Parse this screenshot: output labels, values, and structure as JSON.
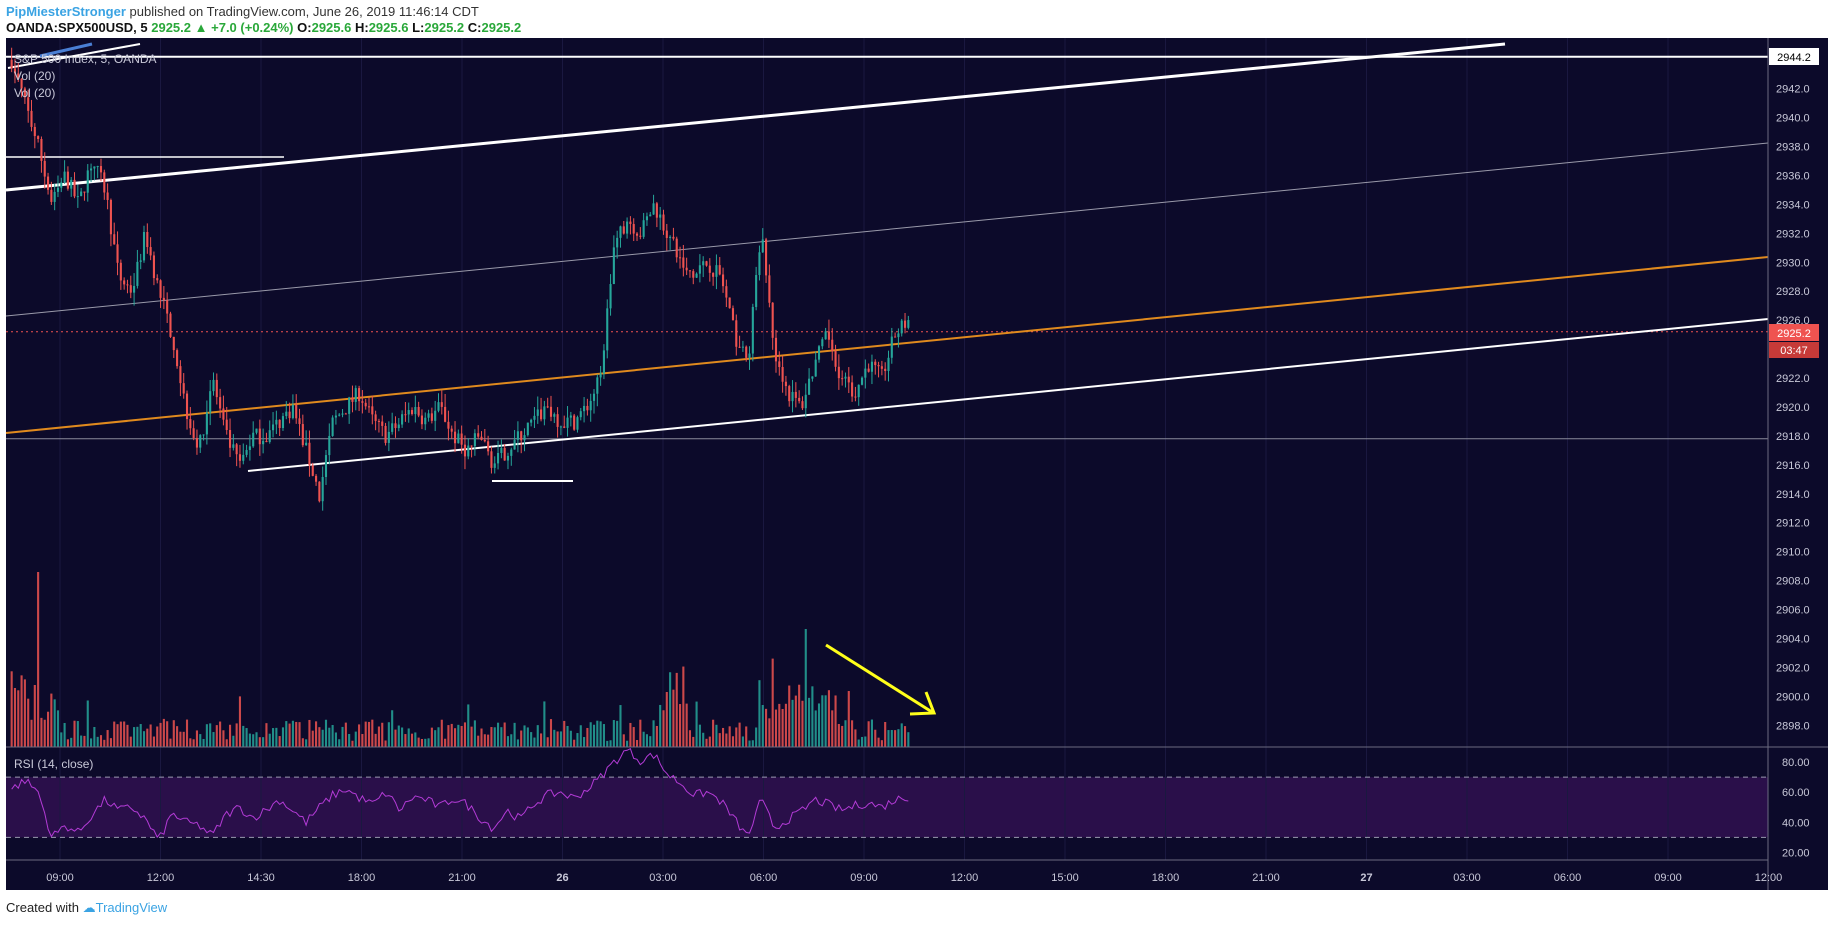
{
  "header": {
    "author": "PipMiesterStronger",
    "published": "published on TradingView.com, June 26, 2019 11:46:14 CDT",
    "symbol": "OANDA:SPX500USD, 5",
    "last": "2925.2",
    "change": "+7.0 (+0.24%)",
    "o_label": "O:",
    "o": "2925.6",
    "h_label": "H:",
    "h": "2925.6",
    "l_label": "L:",
    "l": "2925.2",
    "c_label": "C:",
    "c": "2925.2"
  },
  "overlay": {
    "title": "S&P 500 Index, 5, OANDA",
    "vol1": "Vol (20)",
    "vol2": "Vol (20)",
    "rsi": "RSI (14, close)"
  },
  "price_tags": {
    "resistance": "2944.2",
    "current": "2925.2",
    "countdown": "03:47"
  },
  "footer": {
    "created": "Created with",
    "brand": "TradingView"
  },
  "colors": {
    "background": "#0c0a2a",
    "up": "#26a69a",
    "down": "#ef5350",
    "rsi_line": "#b33bd6",
    "orange_line": "#e08a1e",
    "arrow": "#ffff1a"
  },
  "chart_data": [
    {
      "type": "candlestick",
      "title": "S&P 500 Index, 5, OANDA",
      "ylim": [
        2896.5,
        2945.5
      ],
      "y_ticks": [
        2898.0,
        2900.0,
        2902.0,
        2904.0,
        2906.0,
        2908.0,
        2910.0,
        2912.0,
        2914.0,
        2916.0,
        2918.0,
        2920.0,
        2922.0,
        2924.0,
        2926.0,
        2928.0,
        2930.0,
        2932.0,
        2934.0,
        2936.0,
        2938.0,
        2940.0,
        2942.0
      ],
      "x_ticks": [
        "09:00",
        "12:00",
        "14:30",
        "18:00",
        "21:00",
        "26",
        "03:00",
        "06:00",
        "09:00",
        "12:00",
        "15:00",
        "18:00",
        "21:00",
        "27",
        "03:00",
        "06:00",
        "09:00",
        "12:00"
      ],
      "price_path": [
        2944,
        2941,
        2938,
        2934,
        2936,
        2934,
        2937,
        2935,
        2929,
        2928,
        2932,
        2928,
        2925,
        2920,
        2917,
        2922,
        2918,
        2916,
        2918,
        2918,
        2919,
        2920,
        2917,
        2914,
        2919,
        2920,
        2921,
        2919,
        2918,
        2919,
        2920,
        2919,
        2920,
        2918,
        2917,
        2918,
        2916,
        2917,
        2918,
        2919,
        2920,
        2919,
        2919,
        2920,
        2922,
        2931,
        2933,
        2932,
        2934,
        2932,
        2930,
        2929,
        2930,
        2929,
        2925,
        2923,
        2932,
        2924,
        2921,
        2920,
        2923,
        2925,
        2922,
        2921,
        2923,
        2922,
        2925,
        2926
      ],
      "levels": {
        "resistance": 2944.2,
        "current": 2925.2,
        "support_flat": 2917.8
      }
    },
    {
      "type": "bar",
      "title": "Vol (20)",
      "peaks": [
        {
          "x": "07:30",
          "note": "spike"
        },
        {
          "x": "08:30",
          "note": "spike"
        }
      ]
    },
    {
      "type": "line",
      "title": "RSI (14, close)",
      "ylim": [
        15,
        90
      ],
      "y_ticks": [
        20.0,
        40.0,
        60.0,
        80.0
      ],
      "bands": [
        30,
        70
      ],
      "path": [
        62,
        68,
        60,
        30,
        38,
        33,
        45,
        55,
        48,
        50,
        42,
        28,
        46,
        40,
        38,
        31,
        45,
        50,
        43,
        48,
        55,
        48,
        40,
        50,
        58,
        62,
        56,
        52,
        60,
        48,
        57,
        55,
        50,
        56,
        52,
        43,
        36,
        48,
        42,
        52,
        58,
        60,
        56,
        62,
        70,
        80,
        88,
        81,
        85,
        72,
        66,
        58,
        60,
        54,
        42,
        30,
        55,
        36,
        42,
        47,
        55,
        52,
        48,
        51,
        53,
        50,
        55,
        57
      ]
    }
  ]
}
